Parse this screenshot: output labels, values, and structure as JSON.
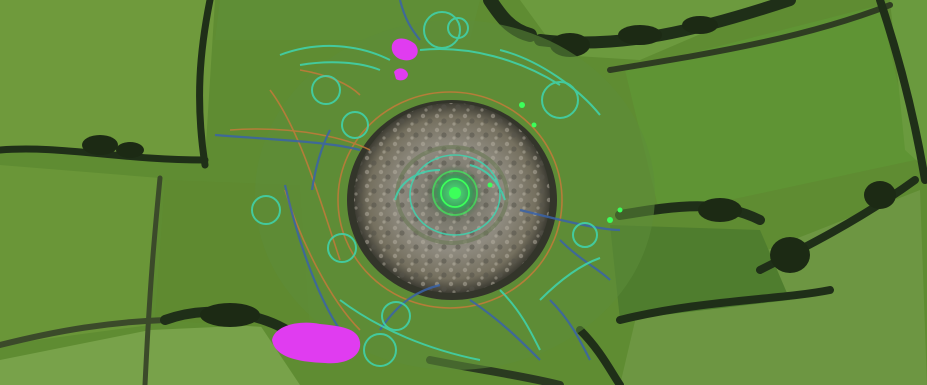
{
  "map": {
    "kind": "aerial-survey-overlay",
    "colors": {
      "field_light": "#6f9a3c",
      "field_mid": "#5f8c32",
      "field_dark": "#4f7a2c",
      "hedgerow": "#1f2f18",
      "mound_stone": "#8d8a80",
      "mound_shadow": "#4b4a42",
      "feature_cyan": "#3fd5b0",
      "feature_blue": "#3a63a8",
      "feature_orange": "#c47a3a",
      "feature_green": "#3cff5a",
      "highlight_magenta": "#e03cf0"
    }
  }
}
